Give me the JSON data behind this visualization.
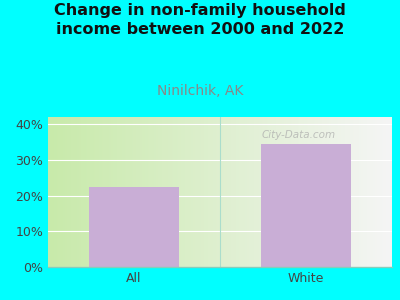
{
  "title": "Change in non-family household\nincome between 2000 and 2022",
  "subtitle": "Ninilchik, AK",
  "categories": [
    "All",
    "White"
  ],
  "values": [
    22.5,
    34.5
  ],
  "bar_color": "#c9aed6",
  "title_fontsize": 11.5,
  "subtitle_fontsize": 10,
  "subtitle_color": "#888888",
  "title_color": "#111111",
  "tick_label_fontsize": 9,
  "ylim": [
    0,
    42
  ],
  "yticks": [
    0,
    10,
    20,
    30,
    40
  ],
  "bg_outer": "#00ffff",
  "bg_plot_left": "#d6efc0",
  "bg_plot_right": "#f0f0f0",
  "watermark": "City-Data.com"
}
